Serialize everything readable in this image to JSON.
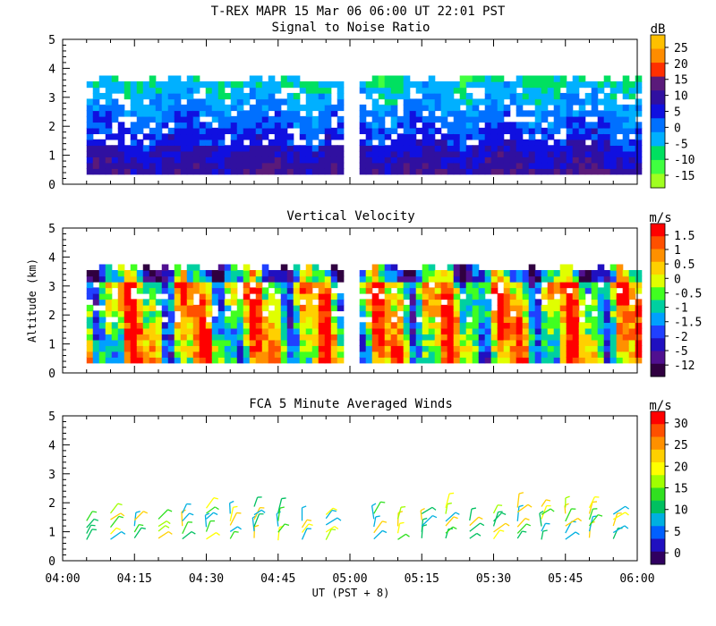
{
  "title": "T-REX   MAPR 15 Mar 06   06:00 UT   22:01   PST",
  "x_axis": {
    "ticks": [
      "04:00",
      "04:15",
      "04:30",
      "04:45",
      "05:00",
      "05:15",
      "05:30",
      "05:45",
      "06:00"
    ],
    "label": "UT  (PST + 8)"
  },
  "chart_data": [
    {
      "type": "heatmap",
      "title": "Signal to Noise Ratio",
      "ylabel": "",
      "ylim": [
        0,
        5
      ],
      "y_ticks": [
        "0",
        "1",
        "2",
        "3",
        "4",
        "5"
      ],
      "xlim": [
        "04:00",
        "06:00"
      ],
      "data_gap": [
        "04:59",
        "05:01"
      ],
      "colorbar": {
        "unit": "dB",
        "labels": [
          "25",
          "20",
          "15",
          "10",
          "5",
          "0",
          "-5",
          "-10",
          "-15"
        ],
        "colors": [
          "#ffc000",
          "#ff8c00",
          "#ff3000",
          "#5a1a7a",
          "#3010a0",
          "#1010e0",
          "#0070ff",
          "#00b0ff",
          "#00e060",
          "#40ff40",
          "#a0ff20"
        ]
      }
    },
    {
      "type": "heatmap",
      "title": "Vertical Velocity",
      "ylabel": "Altitude (km)",
      "ylim": [
        0,
        5
      ],
      "y_ticks": [
        "0",
        "1",
        "2",
        "3",
        "4",
        "5"
      ],
      "xlim": [
        "04:00",
        "06:00"
      ],
      "data_gap": [
        "04:59",
        "05:01"
      ],
      "colorbar": {
        "unit": "m/s",
        "labels": [
          "1.5",
          "1",
          "0.5",
          "0",
          "-0.5",
          "-1",
          "-1.5",
          "-2",
          "-5",
          "-12"
        ],
        "colors": [
          "#ff0000",
          "#ff5000",
          "#ff9000",
          "#ffd000",
          "#e0ff00",
          "#40ff20",
          "#00d0a0",
          "#00a0ff",
          "#2040ff",
          "#2010c0",
          "#501090",
          "#300040"
        ]
      }
    },
    {
      "type": "scatter",
      "title": "FCA 5 Minute Averaged Winds",
      "ylabel": "",
      "ylim": [
        0,
        5
      ],
      "y_ticks": [
        "0",
        "1",
        "2",
        "3",
        "4",
        "5"
      ],
      "xlim": [
        "04:00",
        "06:00"
      ],
      "colorbar": {
        "unit": "m/s",
        "labels": [
          "30",
          "25",
          "20",
          "15",
          "10",
          "5",
          "0"
        ],
        "colors": [
          "#ff0000",
          "#ff5000",
          "#ff9000",
          "#ffd000",
          "#ffff00",
          "#a0ff00",
          "#30e020",
          "#00c060",
          "#00b0e0",
          "#0060ff",
          "#2010c0",
          "#300060"
        ]
      }
    }
  ]
}
